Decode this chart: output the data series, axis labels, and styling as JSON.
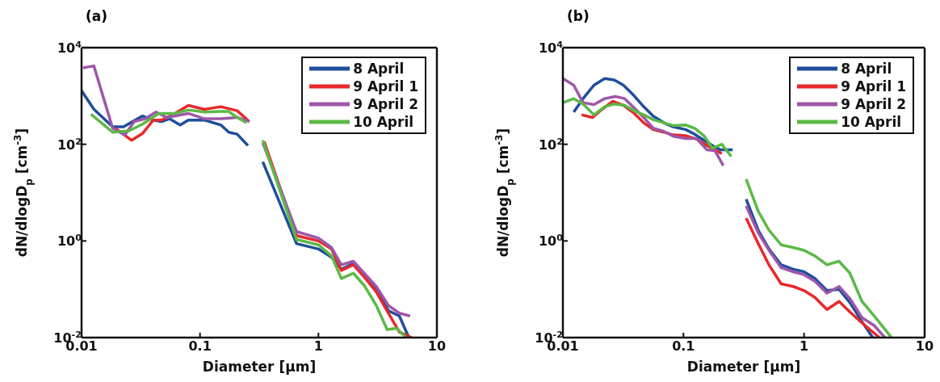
{
  "chart_data": [
    {
      "type": "line",
      "title": "(a)",
      "xlabel": "Diameter [μm]",
      "ylabel": "dN/dlogD$_{p}$ [cm$^{-3}$]",
      "log": "xy",
      "xlim": [
        0.01,
        10
      ],
      "xticks": [
        0.01,
        0.1,
        1,
        10
      ],
      "ylim": [
        0.01,
        10000
      ],
      "yticks": [
        {
          "value": 0.01,
          "label": "10$^{-2}$"
        },
        {
          "value": 1,
          "label": "10$^{0}$"
        },
        {
          "value": 100,
          "label": "10$^{2}$"
        },
        {
          "value": 10000,
          "label": "10$^{4}$"
        }
      ],
      "legend": "top right",
      "marker": "none",
      "line_style": "solid",
      "series": [
        {
          "name": "8 April",
          "color": "#1f4e9c",
          "x": [
            0.01,
            0.0127,
            0.0183,
            0.0226,
            0.0327,
            0.0403,
            0.0472,
            0.0552,
            0.068,
            0.0797,
            0.109,
            0.15,
            0.175,
            0.206,
            0.254,
            0.3,
            0.339,
            0.653,
            1.0,
            1.29,
            1.56,
            1.97,
            2.43,
            3.08,
            3.9,
            4.82,
            5.8
          ],
          "values": [
            1290,
            530,
            230,
            230,
            385,
            316,
            296,
            337,
            251,
            316,
            316,
            251,
            178,
            162,
            94,
            null,
            43.5,
            0.88,
            0.68,
            0.46,
            0.26,
            0.34,
            0.19,
            0.1,
            0.036,
            0.028,
            0.01
          ]
        },
        {
          "name": "9 April 1",
          "color": "#e8282b",
          "x": [
            0.0193,
            0.0264,
            0.0327,
            0.0403,
            0.0472,
            0.0614,
            0.0797,
            0.109,
            0.15,
            0.206,
            0.261,
            0.3,
            0.348,
            0.653,
            1.0,
            1.29,
            1.56,
            1.97,
            2.43,
            3.08,
            3.9,
            4.82,
            6.1
          ],
          "values": [
            215,
            121,
            167,
            316,
            316,
            435,
            640,
            527,
            600,
            495,
            296,
            null,
            114,
            1.29,
            1.0,
            0.68,
            0.245,
            0.32,
            0.18,
            0.088,
            0.032,
            0.013,
            0.01
          ]
        },
        {
          "name": "9 April 2",
          "color": "#9e57a8",
          "x": [
            0.0103,
            0.0127,
            0.0183,
            0.0232,
            0.0279,
            0.0344,
            0.0425,
            0.0524,
            0.0797,
            0.109,
            0.15,
            0.206,
            0.261,
            0.3,
            0.339,
            0.653,
            1.0,
            1.29,
            1.56,
            1.97,
            2.43,
            3.08,
            3.9,
            4.82,
            5.94
          ],
          "values": [
            3830,
            4190,
            215,
            156,
            296,
            337,
            464,
            359,
            435,
            337,
            337,
            359,
            296,
            null,
            107,
            1.56,
            1.14,
            0.73,
            0.32,
            0.38,
            0.215,
            0.114,
            0.046,
            0.032,
            0.028
          ]
        },
        {
          "name": "10 April",
          "color": "#5cb946",
          "x": [
            0.012,
            0.0183,
            0.0251,
            0.0327,
            0.0448,
            0.0614,
            0.0797,
            0.109,
            0.15,
            0.175,
            0.206,
            0.247,
            0.3,
            0.339,
            0.653,
            1.0,
            1.29,
            1.56,
            1.97,
            2.43,
            3.08,
            3.8,
            4.57,
            5.5
          ],
          "values": [
            419,
            178,
            190,
            261,
            435,
            435,
            514,
            464,
            476,
            476,
            359,
            278,
            null,
            121,
            1.07,
            0.83,
            0.49,
            0.167,
            0.215,
            0.121,
            0.046,
            0.0147,
            0.0156,
            0.01
          ]
        }
      ]
    },
    {
      "type": "line",
      "title": "(b)",
      "xlabel": "Diameter [μm]",
      "ylabel": "dN/dlogD$_{p}$ [cm$^{-3}$]",
      "log": "xy",
      "xlim": [
        0.01,
        10
      ],
      "xticks": [
        0.01,
        0.1,
        1,
        10
      ],
      "ylim": [
        0.01,
        10000
      ],
      "yticks": [
        {
          "value": 0.01,
          "label": "10$^{-2}$"
        },
        {
          "value": 1,
          "label": "10$^{0}$"
        },
        {
          "value": 100,
          "label": "10$^{2}$"
        },
        {
          "value": 10000,
          "label": "10$^{4}$"
        }
      ],
      "legend": "top right",
      "marker": "none",
      "line_style": "solid",
      "series": [
        {
          "name": "8 April",
          "color": "#1f4e9c",
          "x": [
            0.0123,
            0.0147,
            0.0181,
            0.0222,
            0.0266,
            0.0318,
            0.0391,
            0.0468,
            0.0561,
            0.0689,
            0.0824,
            0.104,
            0.121,
            0.142,
            0.174,
            0.203,
            0.256,
            0.29,
            0.331,
            0.417,
            0.512,
            0.646,
            0.814,
            1.0,
            1.23,
            1.55,
            1.95,
            2.4,
            3.02,
            3.71
          ],
          "values": [
            464,
            880,
            1670,
            2300,
            2150,
            1670,
            1000,
            600,
            383,
            278,
            230,
            202,
            167,
            129,
            94,
            77,
            77,
            null,
            7.3,
            1.67,
            0.68,
            0.32,
            0.26,
            0.23,
            0.167,
            0.094,
            0.1,
            0.053,
            0.0215,
            0.01
          ]
        },
        {
          "name": "9 April 1",
          "color": "#e8282b",
          "x": [
            0.0143,
            0.0176,
            0.0211,
            0.0259,
            0.0318,
            0.0391,
            0.0468,
            0.0561,
            0.0689,
            0.0824,
            0.104,
            0.128,
            0.157,
            0.208,
            0.29,
            0.331,
            0.417,
            0.512,
            0.646,
            0.814,
            1.0,
            1.23,
            1.55,
            1.95,
            2.4,
            3.02,
            4.22
          ],
          "values": [
            408,
            359,
            527,
            774,
            640,
            435,
            278,
            202,
            178,
            156,
            151,
            129,
            94,
            64,
            null,
            2.97,
            0.88,
            0.32,
            0.129,
            0.114,
            0.094,
            0.068,
            0.038,
            0.056,
            0.034,
            0.0202,
            0.01
          ]
        },
        {
          "name": "9 April 2",
          "color": "#9e57a8",
          "x": [
            0.01,
            0.0123,
            0.0147,
            0.0181,
            0.0222,
            0.0272,
            0.0326,
            0.0391,
            0.0468,
            0.0561,
            0.0689,
            0.0824,
            0.104,
            0.128,
            0.157,
            0.183,
            0.214,
            0.29,
            0.331,
            0.417,
            0.512,
            0.646,
            0.814,
            1.0,
            1.23,
            1.55,
            1.95,
            2.4,
            3.02,
            3.81,
            4.68
          ],
          "values": [
            2300,
            1670,
            727,
            664,
            880,
            975,
            880,
            562,
            359,
            215,
            185,
            147,
            132,
            132,
            77,
            73,
            36,
            null,
            5.3,
            1.47,
            0.64,
            0.28,
            0.23,
            0.2,
            0.147,
            0.083,
            0.114,
            0.064,
            0.026,
            0.0178,
            0.01
          ]
        },
        {
          "name": "10 April",
          "color": "#5cb946",
          "x": [
            0.01,
            0.0123,
            0.0147,
            0.0181,
            0.0222,
            0.0266,
            0.0326,
            0.0391,
            0.0468,
            0.0561,
            0.0689,
            0.0824,
            0.104,
            0.124,
            0.149,
            0.174,
            0.208,
            0.249,
            0.29,
            0.331,
            0.417,
            0.512,
            0.646,
            0.814,
            1.0,
            1.23,
            1.55,
            1.95,
            2.4,
            3.02,
            3.81,
            5.32
          ],
          "values": [
            727,
            880,
            681,
            408,
            600,
            681,
            640,
            495,
            408,
            324,
            278,
            245,
            251,
            215,
            147,
            83,
            100,
            56,
            null,
            19,
            4.1,
            1.67,
            0.83,
            0.73,
            0.64,
            0.49,
            0.32,
            0.38,
            0.215,
            0.056,
            0.028,
            0.01
          ]
        }
      ]
    }
  ]
}
